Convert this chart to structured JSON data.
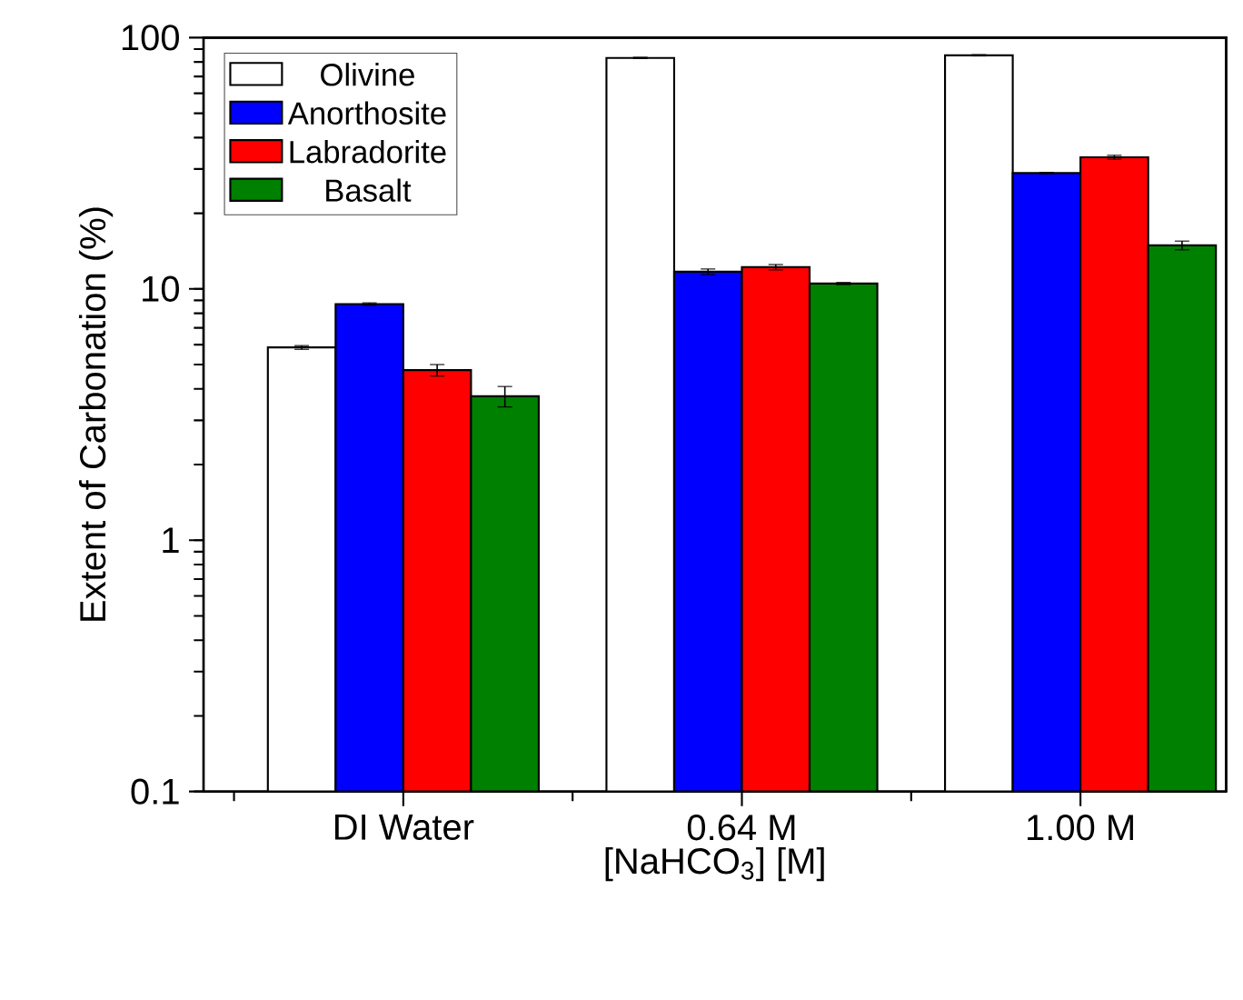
{
  "chart_data": {
    "type": "bar",
    "xlabel": "[NaHCO$_{3}$] [M]",
    "ylabel": "Extent of Carbonation (%)",
    "categories": [
      "DI Water",
      "0.64 M",
      "1.00 M"
    ],
    "series": [
      {
        "name": "Olivine",
        "color": "#ffffff",
        "values": [
          5.85,
          83,
          85
        ],
        "errors": [
          0.1,
          0.5,
          0.5
        ]
      },
      {
        "name": "Anorthosite",
        "color": "#0000ff",
        "values": [
          8.7,
          11.7,
          28.9
        ],
        "errors": [
          0.1,
          0.3,
          0.2
        ]
      },
      {
        "name": "Labradorite",
        "color": "#ff0000",
        "values": [
          4.75,
          12.2,
          33.4
        ],
        "errors": [
          0.25,
          0.3,
          0.6
        ]
      },
      {
        "name": "Basalt",
        "color": "#008000",
        "values": [
          3.74,
          10.5,
          14.9
        ],
        "errors": [
          0.35,
          0.1,
          0.6
        ]
      }
    ],
    "log": true,
    "ylim": [
      0.1,
      100
    ],
    "yticks": [
      0.1,
      1,
      10,
      100
    ],
    "legend": "top left"
  }
}
